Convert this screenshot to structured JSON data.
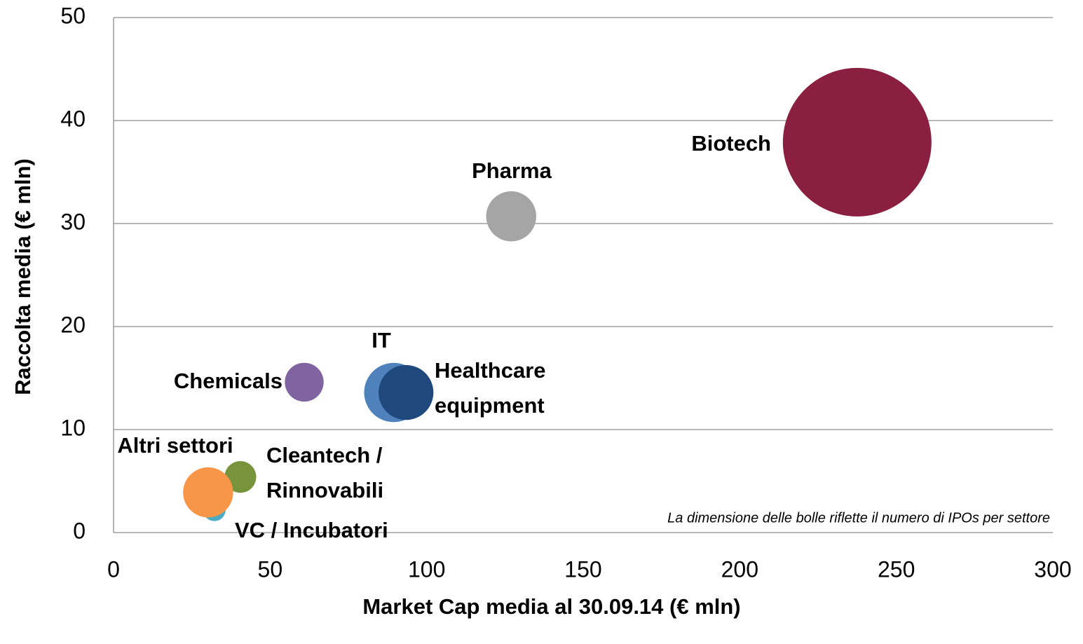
{
  "chart_data": {
    "type": "bubble",
    "x_label": "Market Cap media al 30.09.14 (€ mln)",
    "y_label": "Raccolta media (€ mln)",
    "annotation": "La dimensione delle bolle riflette il numero di IPOs per settore",
    "xlim": [
      0,
      300
    ],
    "xticks": [
      0,
      50,
      100,
      150,
      200,
      250,
      300
    ],
    "ylim": [
      0,
      50
    ],
    "yticks": [
      0,
      10,
      20,
      30,
      40,
      50
    ],
    "grid": true,
    "series": [
      {
        "name": "Biotech",
        "color": "#8b1f41",
        "x": [
          237.5
        ],
        "values": [
          37.9
        ],
        "sizes": [
          44
        ]
      },
      {
        "name": "Pharma",
        "color": "#a5a5a5",
        "x": [
          127
        ],
        "values": [
          30.7
        ],
        "sizes": [
          5
        ]
      },
      {
        "name": "IT",
        "color": "#4f81bd",
        "x": [
          89.5
        ],
        "values": [
          13.6
        ],
        "sizes": [
          7
        ]
      },
      {
        "name": "Healthcare equipment",
        "color": "#1f497d",
        "x": [
          93.4
        ],
        "values": [
          13.6
        ],
        "sizes": [
          6
        ]
      },
      {
        "name": "Chemicals",
        "color": "#8064a2",
        "x": [
          60.9
        ],
        "values": [
          14.6
        ],
        "sizes": [
          3
        ]
      },
      {
        "name": "Cleantech / Rinnovabili",
        "color": "#77933c",
        "x": [
          40.5
        ],
        "values": [
          5.4
        ],
        "sizes": [
          2
        ]
      },
      {
        "name": "VC / Incubatori",
        "color": "#4bacc6",
        "x": [
          32.2
        ],
        "values": [
          2.2
        ],
        "sizes": [
          1
        ]
      },
      {
        "name": "Altri settori",
        "color": "#f79646",
        "x": [
          30.2
        ],
        "values": [
          3.9
        ],
        "sizes": [
          5
        ]
      }
    ]
  }
}
